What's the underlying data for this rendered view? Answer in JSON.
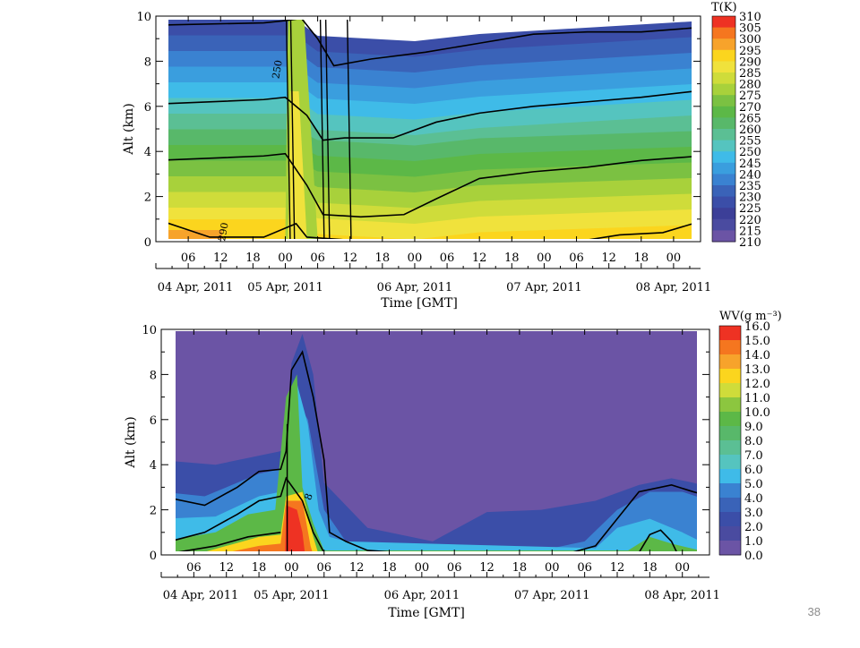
{
  "slide": {
    "number": "38"
  },
  "chart_data": [
    {
      "type": "heatmap",
      "title": "",
      "ylabel": "Alt (km)",
      "xlabel": "Time [GMT]",
      "ylim": [
        0,
        10
      ],
      "y_ticks": [
        "0",
        "2",
        "4",
        "6",
        "8",
        "10"
      ],
      "x_hour_ticks": [
        "06",
        "12",
        "18",
        "00",
        "06",
        "12",
        "18",
        "00",
        "06",
        "12",
        "18",
        "00",
        "06",
        "12",
        "18",
        "00"
      ],
      "x_hour_tick_hours": [
        6,
        12,
        18,
        24,
        30,
        36,
        42,
        48,
        54,
        60,
        66,
        72,
        78,
        84,
        90,
        96
      ],
      "x_date_labels": [
        "04 Apr, 2011",
        "05 Apr, 2011",
        "06 Apr, 2011",
        "07 Apr, 2011",
        "08 Apr, 2011"
      ],
      "x_date_hours": [
        0,
        24,
        48,
        72,
        96
      ],
      "xlim_hours": [
        0,
        101
      ],
      "colorbar": {
        "title": "T(K)",
        "levels": [
          "310",
          "305",
          "300",
          "295",
          "290",
          "285",
          "280",
          "275",
          "270",
          "265",
          "260",
          "255",
          "250",
          "245",
          "240",
          "235",
          "230",
          "225",
          "220",
          "215",
          "210"
        ],
        "colors": [
          "#ee3223",
          "#f5761f",
          "#f7a32b",
          "#fbd51e",
          "#f0e23c",
          "#cfdc3a",
          "#a8d13b",
          "#7bc142",
          "#5cb847",
          "#58b86a",
          "#5bbf94",
          "#55c4bf",
          "#3fbbe8",
          "#3a9ede",
          "#3a82d1",
          "#3a63b8",
          "#3b4ea8",
          "#3c3f98",
          "#4a4ba0",
          "#6b54a5"
        ]
      },
      "contour_labels": [
        "250",
        "290"
      ],
      "annotation_note": ""
    },
    {
      "type": "heatmap",
      "title": "",
      "ylabel": "Alt (km)",
      "xlabel": "Time [GMT]",
      "ylim": [
        0,
        10
      ],
      "y_ticks": [
        "0",
        "2",
        "4",
        "6",
        "8",
        "10"
      ],
      "x_hour_ticks": [
        "06",
        "12",
        "18",
        "00",
        "06",
        "12",
        "18",
        "00",
        "06",
        "12",
        "18",
        "00",
        "06",
        "12",
        "18",
        "00"
      ],
      "x_hour_tick_hours": [
        6,
        12,
        18,
        24,
        30,
        36,
        42,
        48,
        54,
        60,
        66,
        72,
        78,
        84,
        90,
        96
      ],
      "x_date_labels": [
        "04 Apr, 2011",
        "05 Apr, 2011",
        "06 Apr, 2011",
        "07 Apr, 2011",
        "08 Apr, 2011"
      ],
      "x_date_hours": [
        0,
        24,
        48,
        72,
        96
      ],
      "xlim_hours": [
        0,
        101
      ],
      "colorbar": {
        "title": "WV(g m⁻³)",
        "levels": [
          "16.0",
          "15.0",
          "14.0",
          "13.0",
          "12.0",
          "11.0",
          "10.0",
          "9.0",
          "8.0",
          "7.0",
          "6.0",
          "5.0",
          "4.0",
          "3.0",
          "2.0",
          "1.0",
          "0.0"
        ],
        "colors": [
          "#ee3223",
          "#f5761f",
          "#f7a32b",
          "#fbd51e",
          "#cfdc3a",
          "#8cc63f",
          "#5cb847",
          "#58b86a",
          "#5bbf94",
          "#55c4bf",
          "#3fbbe8",
          "#3a82d1",
          "#3a63b8",
          "#3b4ea8",
          "#4a4ba0",
          "#6b54a5"
        ]
      },
      "contour_labels": [
        "8"
      ]
    }
  ]
}
